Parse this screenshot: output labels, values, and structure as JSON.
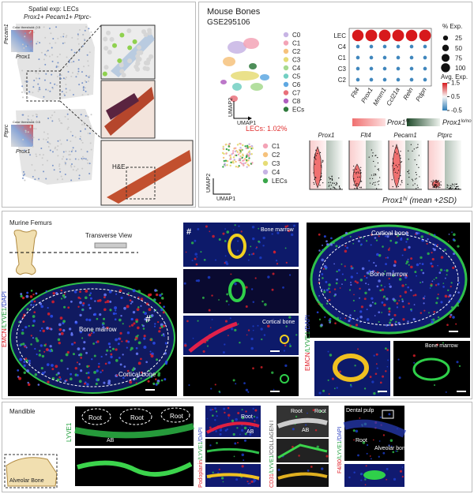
{
  "panel_a": {
    "title": "Spatial exp: LECs",
    "subtitle": "Prox1+ Pecam1+ Ptprc-",
    "maps": [
      {
        "y_label": "Pecam1",
        "x_label": "Prox1",
        "threshold": "Color threshold: 0.5"
      },
      {
        "y_label": "Ptprc",
        "x_label": "Prox1",
        "threshold": "Color threshold: 0.5"
      }
    ],
    "he_label": "H&E"
  },
  "panel_b": {
    "title": "Mouse Bones",
    "accession": "GSE295106",
    "clusters": [
      "C0",
      "C1",
      "C2",
      "C3",
      "C4",
      "C5",
      "C6",
      "C7",
      "C8",
      "ECs"
    ],
    "cluster_colors": [
      "#c7b4e4",
      "#f3a3b6",
      "#f6c27c",
      "#e6dc76",
      "#a6d98e",
      "#72cfc2",
      "#5ea8e2",
      "#e9707a",
      "#b05fc0",
      "#2f7a3c"
    ],
    "umap_x": "UMAP1",
    "umap_y": "UMAP2",
    "lec_fraction": "LECs: 1.02%",
    "subclusters": [
      "C1",
      "C2",
      "C3",
      "C4",
      "LECs"
    ],
    "subcluster_colors": [
      "#f3a3b6",
      "#f6c27c",
      "#e6dc76",
      "#c7b4e4",
      "#3aa64a"
    ],
    "dotplot": {
      "genes": [
        "Flt4",
        "Prox1",
        "Mmrn1",
        "Ccl21a",
        "Reln",
        "Pdpn"
      ],
      "groups": [
        "LEC",
        "C4",
        "C1",
        "C3",
        "C2"
      ],
      "pct": [
        [
          90,
          95,
          95,
          95,
          90,
          95
        ],
        [
          5,
          5,
          5,
          5,
          5,
          5
        ],
        [
          5,
          5,
          5,
          5,
          5,
          5
        ],
        [
          5,
          5,
          5,
          5,
          5,
          5
        ],
        [
          5,
          5,
          5,
          5,
          5,
          5
        ]
      ],
      "avg": [
        [
          1.5,
          1.5,
          1.5,
          1.5,
          1.5,
          1.5
        ],
        [
          -0.4,
          -0.4,
          -0.4,
          -0.4,
          -0.4,
          -0.4
        ],
        [
          -0.4,
          -0.4,
          -0.4,
          -0.4,
          -0.4,
          -0.4
        ],
        [
          -0.4,
          -0.4,
          -0.4,
          -0.4,
          -0.4,
          -0.4
        ],
        [
          -0.4,
          -0.4,
          -0.4,
          -0.4,
          -0.4,
          -0.4
        ]
      ],
      "size_title": "% Exp.",
      "size_ticks": [
        25,
        50,
        75,
        100
      ],
      "color_title": "Avg. Exp.",
      "color_ticks": [
        1.5,
        0.5,
        -0.5
      ]
    },
    "group_legend": [
      {
        "gene": "Prox1",
        "sup": "hi"
      },
      {
        "gene": "Prox1",
        "sup": "lo/no"
      }
    ],
    "violin_genes": [
      "Prox1",
      "Flt4",
      "Pecam1",
      "Ptprc"
    ],
    "footnote": {
      "gene": "Prox1",
      "sup": "hi",
      "rest": " (mean +2SD)"
    }
  },
  "panel_c": {
    "title": "Murine Femurs",
    "view": "Transverse View",
    "stain": {
      "parts": [
        "EMCN",
        "/LYVE1",
        "/DAPI"
      ],
      "colors": [
        "#e0202a",
        "#1f9e3a",
        "#2a3fc0"
      ]
    },
    "left_labels": [
      "Bone marrow",
      "Cortical bone",
      "#"
    ],
    "middle_labels": [
      "#",
      "Bone marrow",
      "Cortical bone"
    ],
    "right_labels": [
      "Cortical bone",
      "Bone marrow",
      "Bone marrow"
    ],
    "right_stain": {
      "parts": [
        "EMCN",
        "/LYVE1",
        "/DAPI"
      ],
      "colors": [
        "#e0202a",
        "#1f9e3a",
        "#2a3fc0"
      ]
    }
  },
  "panel_d": {
    "title": "Mandible",
    "inset_label": "Alveolar Bone",
    "lyve1": "LYVE1",
    "lyve1_labels": [
      "Root",
      "Root",
      "Root",
      "AB"
    ],
    "pdpn_stain": {
      "parts": [
        "Podoplanin",
        "/LYVE1",
        "/DAPI"
      ],
      "colors": [
        "#e0202a",
        "#1f9e3a",
        "#2a3fc0"
      ]
    },
    "pdpn_labels": [
      "Root",
      "AB"
    ],
    "cd31_stain": {
      "parts": [
        "CD31",
        "/LYVE1",
        "/COLLAGEN I"
      ],
      "colors": [
        "#e0202a",
        "#1f9e3a",
        "#555555"
      ]
    },
    "cd31_labels": [
      "Root",
      "Root",
      "AB"
    ],
    "f480_stain": {
      "parts": [
        "F4/80",
        "/LYVE1",
        "/DAPI"
      ],
      "colors": [
        "#e0202a",
        "#1f9e3a",
        "#2a3fc0"
      ]
    },
    "f480_labels": [
      "Dental pulp",
      "Root",
      "Alveolar bone"
    ]
  }
}
